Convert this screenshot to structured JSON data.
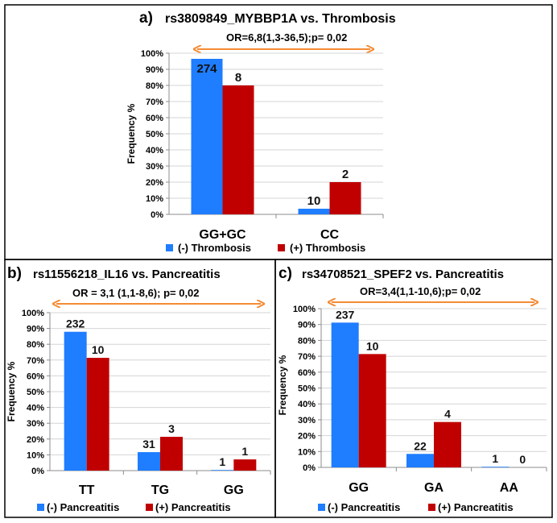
{
  "colors": {
    "minus": "#1f7dff",
    "plus": "#c00000",
    "arrow": "#f58b34",
    "grid": "#d4d4d4",
    "axis": "#8c8c8c",
    "frame": "#000000"
  },
  "chart_data": [
    {
      "type": "bar",
      "panel_label": "a)",
      "title": "rs3809849_MYBBP1A vs. Thrombosis",
      "annotation": "OR=6,8(1,3-36,5);p= 0,02",
      "ylabel": "Frequency %",
      "xlabel": "",
      "ylim": [
        0,
        100
      ],
      "yticks": [
        "0%",
        "10%",
        "20%",
        "30%",
        "40%",
        "50%",
        "60%",
        "70%",
        "80%",
        "90%",
        "100%"
      ],
      "categories": [
        "GG+GC",
        "CC"
      ],
      "series": [
        {
          "name": "(-) Thrombosis",
          "values": [
            96.5,
            3.5
          ],
          "labels": [
            "274",
            "10"
          ]
        },
        {
          "name": "(+) Thrombosis",
          "values": [
            80,
            20
          ],
          "labels": [
            "8",
            "2"
          ]
        }
      ],
      "legend": "bottom"
    },
    {
      "type": "bar",
      "panel_label": "b)",
      "title": "rs11556218_IL16 vs. Pancreatitis",
      "annotation": "OR = 3,1 (1,1-8,6); p= 0,02",
      "ylabel": "Frequency %",
      "xlabel": "",
      "ylim": [
        0,
        100
      ],
      "yticks": [
        "0%",
        "10%",
        "20%",
        "30%",
        "40%",
        "50%",
        "60%",
        "70%",
        "80%",
        "90%",
        "100%"
      ],
      "categories": [
        "TT",
        "TG",
        "GG"
      ],
      "series": [
        {
          "name": "(-) Pancreatitis",
          "values": [
            87.9,
            11.7,
            0.4
          ],
          "labels": [
            "232",
            "31",
            "1"
          ]
        },
        {
          "name": "(+) Pancreatitis",
          "values": [
            71.4,
            21.4,
            7.1
          ],
          "labels": [
            "10",
            "3",
            "1"
          ]
        }
      ],
      "legend": "bottom"
    },
    {
      "type": "bar",
      "panel_label": "c)",
      "title": "rs34708521_SPEF2 vs. Pancreatitis",
      "annotation": "OR=3,4(1,1-10,6);p= 0,02",
      "ylabel": "Frequency %",
      "xlabel": "",
      "ylim": [
        0,
        100
      ],
      "yticks": [
        "0%",
        "10%",
        "20%",
        "30%",
        "40%",
        "50%",
        "60%",
        "70%",
        "80%",
        "90%",
        "100%"
      ],
      "categories": [
        "GG",
        "GA",
        "AA"
      ],
      "series": [
        {
          "name": "(-) Pancreatitis",
          "values": [
            91.2,
            8.5,
            0.4
          ],
          "labels": [
            "237",
            "22",
            "1"
          ]
        },
        {
          "name": "(+) Pancreatitis",
          "values": [
            71.4,
            28.6,
            0
          ],
          "labels": [
            "10",
            "4",
            "0"
          ]
        }
      ],
      "legend": "bottom"
    }
  ]
}
